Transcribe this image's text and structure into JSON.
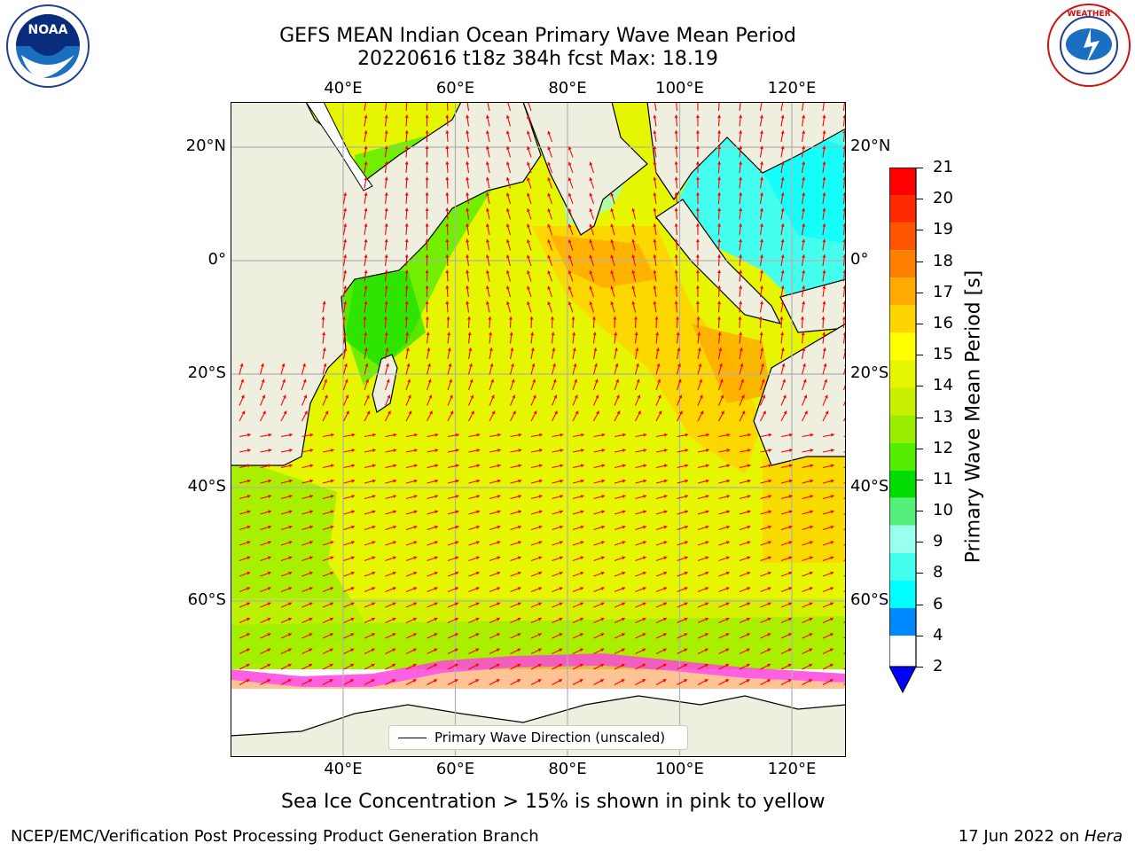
{
  "header": {
    "title_line1": "GEFS MEAN Indian Ocean Primary Wave Mean Period",
    "title_line2": "20220616 t18z 384h fcst   Max: 18.19"
  },
  "logos": {
    "left": "noaa-logo",
    "right": "national-weather-service-logo"
  },
  "map": {
    "lon_labels": [
      "40°E",
      "60°E",
      "80°E",
      "100°E",
      "120°E"
    ],
    "lat_labels": [
      "20°N",
      "0°",
      "20°S",
      "40°S",
      "60°S"
    ],
    "lon_values": [
      40,
      60,
      80,
      100,
      120
    ],
    "lat_values": [
      20,
      0,
      -20,
      -40,
      -60
    ],
    "lon_range": [
      20,
      130
    ],
    "lat_range": [
      28,
      -87
    ],
    "grid": true,
    "land_color": "#efefdf",
    "ice_note": "Sea Ice Concentration > 15% is shown in pink to yellow"
  },
  "legend": {
    "label": "Primary Wave Direction (unscaled)",
    "placement": "bottom-center"
  },
  "colorbar": {
    "label": "Primary Wave Mean Period [s]",
    "ticks": [
      "21",
      "20",
      "19",
      "18",
      "17",
      "16",
      "15",
      "14",
      "13",
      "12",
      "11",
      "10",
      "9",
      "8",
      "6",
      "4",
      "2"
    ],
    "colors": [
      "#ff0000",
      "#ff2a00",
      "#ff5500",
      "#ff8000",
      "#ffaa00",
      "#ffd500",
      "#ffff00",
      "#e6f500",
      "#c8f000",
      "#99ee00",
      "#55ee00",
      "#00dd00",
      "#55f07a",
      "#99ffee",
      "#44ffee",
      "#00ffff",
      "#0088ff"
    ],
    "extend_color": "#0000ff"
  },
  "footer": {
    "left": "NCEP/EMC/Verification Post Processing Product Generation Branch",
    "right_date": "17 Jun 2022 on ",
    "right_host": "Hera"
  }
}
